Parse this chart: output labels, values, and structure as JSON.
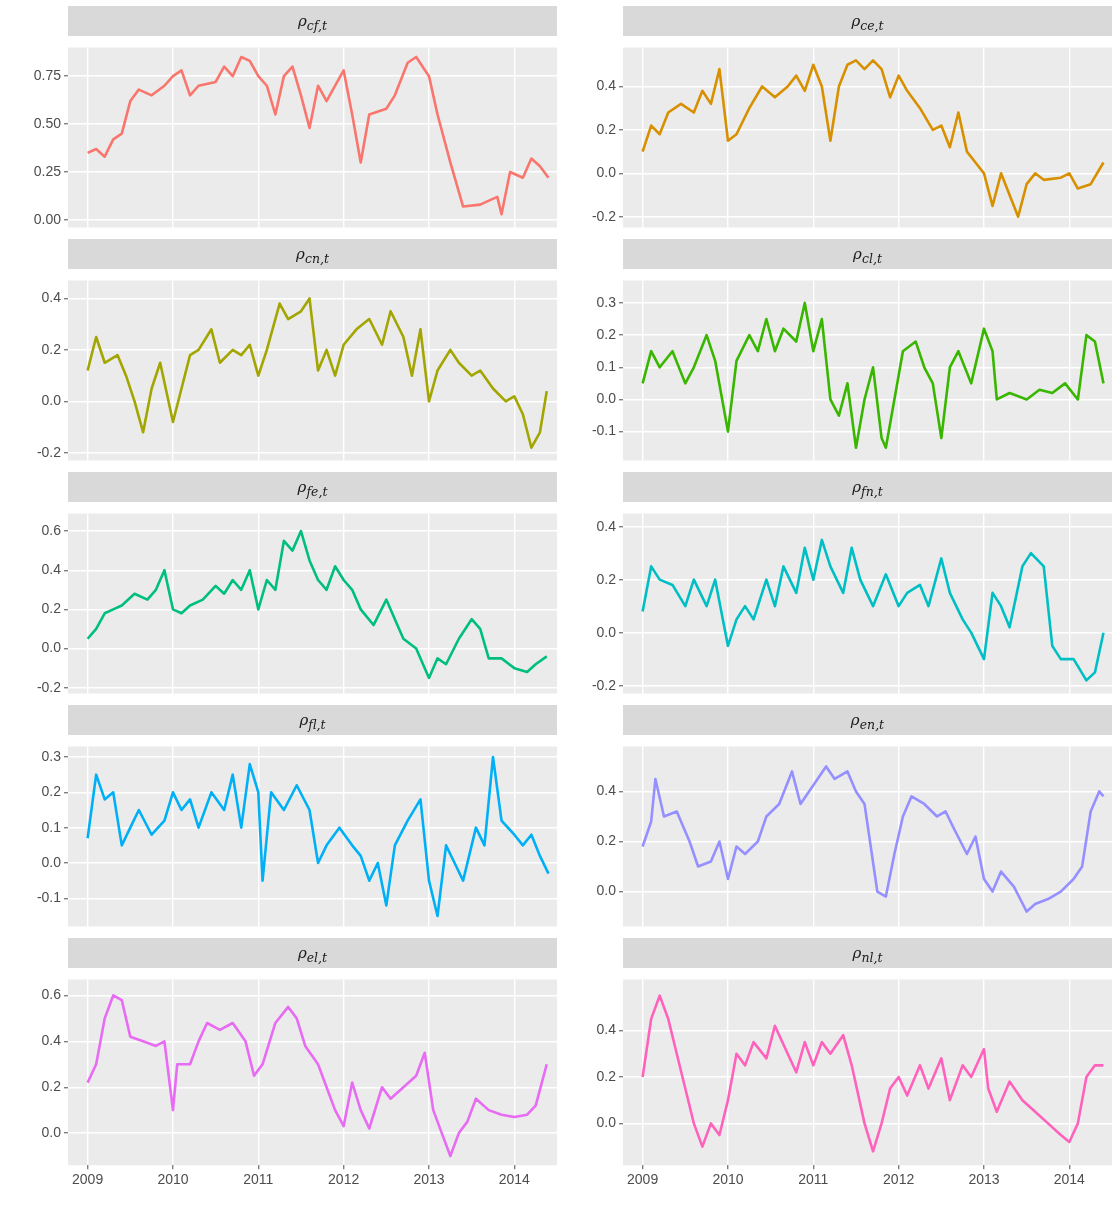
{
  "chart_data": [
    {
      "type": "line",
      "title": "ρ$_{cf,t}$",
      "color": "#f8766d",
      "xlim": [
        2008.77,
        2014.5
      ],
      "xticks": [
        2009,
        2010,
        2011,
        2012,
        2013,
        2014
      ],
      "ylim": [
        -0.04,
        0.9
      ],
      "yticks": [
        {
          "value": 0,
          "label": "0.00"
        },
        {
          "value": 0.25,
          "label": "0.25"
        },
        {
          "value": 0.5,
          "label": "0.50"
        },
        {
          "value": 0.75,
          "label": "0.75"
        }
      ],
      "grid": true,
      "tick_labels": "y",
      "x": [
        2009.0,
        2009.1,
        2009.2,
        2009.3,
        2009.4,
        2009.5,
        2009.6,
        2009.75,
        2009.9,
        2010.0,
        2010.1,
        2010.2,
        2010.3,
        2010.5,
        2010.6,
        2010.7,
        2010.8,
        2010.9,
        2011.0,
        2011.1,
        2011.2,
        2011.3,
        2011.4,
        2011.5,
        2011.6,
        2011.7,
        2011.8,
        2011.9,
        2012.0,
        2012.1,
        2012.2,
        2012.3,
        2012.5,
        2012.6,
        2012.75,
        2012.85,
        2013.0,
        2013.1,
        2013.25,
        2013.4,
        2013.6,
        2013.8,
        2013.85,
        2013.95,
        2014.1,
        2014.2,
        2014.3,
        2014.4
      ],
      "values": [
        0.35,
        0.37,
        0.33,
        0.42,
        0.45,
        0.62,
        0.68,
        0.65,
        0.7,
        0.75,
        0.78,
        0.65,
        0.7,
        0.72,
        0.8,
        0.75,
        0.85,
        0.83,
        0.75,
        0.7,
        0.55,
        0.75,
        0.8,
        0.65,
        0.48,
        0.7,
        0.62,
        0.7,
        0.78,
        0.55,
        0.3,
        0.55,
        0.58,
        0.65,
        0.82,
        0.85,
        0.75,
        0.55,
        0.3,
        0.07,
        0.08,
        0.12,
        0.03,
        0.25,
        0.22,
        0.32,
        0.28,
        0.22
      ]
    },
    {
      "type": "line",
      "title": "ρ$_{ce,t}$",
      "color": "#d89000",
      "xlim": [
        2008.77,
        2014.5
      ],
      "xticks": [
        2009,
        2010,
        2011,
        2012,
        2013,
        2014
      ],
      "ylim": [
        -0.25,
        0.58
      ],
      "yticks": [
        {
          "value": -0.2,
          "label": "-0.2"
        },
        {
          "value": 0,
          "label": "0.0"
        },
        {
          "value": 0.2,
          "label": "0.2"
        },
        {
          "value": 0.4,
          "label": "0.4"
        }
      ],
      "grid": true,
      "tick_labels": "y",
      "x": [
        2009.0,
        2009.1,
        2009.2,
        2009.3,
        2009.45,
        2009.6,
        2009.7,
        2009.8,
        2009.9,
        2010.0,
        2010.1,
        2010.25,
        2010.4,
        2010.55,
        2010.7,
        2010.8,
        2010.9,
        2011.0,
        2011.1,
        2011.2,
        2011.3,
        2011.4,
        2011.5,
        2011.6,
        2011.7,
        2011.8,
        2011.9,
        2012.0,
        2012.1,
        2012.25,
        2012.4,
        2012.5,
        2012.6,
        2012.7,
        2012.8,
        2012.9,
        2013.0,
        2013.1,
        2013.2,
        2013.3,
        2013.4,
        2013.5,
        2013.6,
        2013.7,
        2013.9,
        2014.0,
        2014.1,
        2014.25,
        2014.4
      ],
      "values": [
        0.1,
        0.22,
        0.18,
        0.28,
        0.32,
        0.28,
        0.38,
        0.32,
        0.48,
        0.15,
        0.18,
        0.3,
        0.4,
        0.35,
        0.4,
        0.45,
        0.38,
        0.5,
        0.4,
        0.15,
        0.4,
        0.5,
        0.52,
        0.48,
        0.52,
        0.48,
        0.35,
        0.45,
        0.38,
        0.3,
        0.2,
        0.22,
        0.12,
        0.28,
        0.1,
        0.05,
        0,
        -0.15,
        0,
        -0.1,
        -0.2,
        -0.05,
        0,
        -0.03,
        -0.02,
        0,
        -0.07,
        -0.05,
        0.05
      ]
    },
    {
      "type": "line",
      "title": "ρ$_{cn,t}$",
      "color": "#a3a500",
      "xlim": [
        2008.77,
        2014.5
      ],
      "xticks": [
        2009,
        2010,
        2011,
        2012,
        2013,
        2014
      ],
      "ylim": [
        -0.23,
        0.47
      ],
      "yticks": [
        {
          "value": -0.2,
          "label": "-0.2"
        },
        {
          "value": 0,
          "label": "0.0"
        },
        {
          "value": 0.2,
          "label": "0.2"
        },
        {
          "value": 0.4,
          "label": "0.4"
        }
      ],
      "grid": true,
      "tick_labels": "y",
      "x": [
        2009.0,
        2009.1,
        2009.2,
        2009.35,
        2009.45,
        2009.55,
        2009.65,
        2009.75,
        2009.85,
        2010.0,
        2010.1,
        2010.2,
        2010.3,
        2010.45,
        2010.55,
        2010.7,
        2010.8,
        2010.9,
        2011.0,
        2011.1,
        2011.25,
        2011.35,
        2011.5,
        2011.6,
        2011.7,
        2011.8,
        2011.9,
        2012.0,
        2012.15,
        2012.3,
        2012.45,
        2012.55,
        2012.7,
        2012.8,
        2012.9,
        2013.0,
        2013.1,
        2013.25,
        2013.35,
        2013.5,
        2013.6,
        2013.75,
        2013.9,
        2014.0,
        2014.1,
        2014.2,
        2014.3,
        2014.38
      ],
      "values": [
        0.12,
        0.25,
        0.15,
        0.18,
        0.1,
        0,
        -0.12,
        0.05,
        0.15,
        -0.08,
        0.05,
        0.18,
        0.2,
        0.28,
        0.15,
        0.2,
        0.18,
        0.22,
        0.1,
        0.2,
        0.38,
        0.32,
        0.35,
        0.4,
        0.12,
        0.2,
        0.1,
        0.22,
        0.28,
        0.32,
        0.22,
        0.35,
        0.25,
        0.1,
        0.28,
        0,
        0.12,
        0.2,
        0.15,
        0.1,
        0.12,
        0.05,
        0,
        0.02,
        -0.05,
        -0.18,
        -0.12,
        0.04
      ]
    },
    {
      "type": "line",
      "title": "ρ$_{cl,t}$",
      "color": "#39b600",
      "xlim": [
        2008.77,
        2014.5
      ],
      "xticks": [
        2009,
        2010,
        2011,
        2012,
        2013,
        2014
      ],
      "ylim": [
        -0.19,
        0.37
      ],
      "yticks": [
        {
          "value": -0.1,
          "label": "-0.1"
        },
        {
          "value": 0,
          "label": "0.0"
        },
        {
          "value": 0.1,
          "label": "0.1"
        },
        {
          "value": 0.2,
          "label": "0.2"
        },
        {
          "value": 0.3,
          "label": "0.3"
        }
      ],
      "grid": true,
      "tick_labels": "y",
      "x": [
        2009.0,
        2009.1,
        2009.2,
        2009.35,
        2009.5,
        2009.6,
        2009.75,
        2009.85,
        2010.0,
        2010.1,
        2010.25,
        2010.35,
        2010.45,
        2010.55,
        2010.65,
        2010.8,
        2010.9,
        2011.0,
        2011.1,
        2011.2,
        2011.3,
        2011.4,
        2011.5,
        2011.6,
        2011.7,
        2011.8,
        2011.85,
        2011.95,
        2012.05,
        2012.2,
        2012.3,
        2012.4,
        2012.5,
        2012.6,
        2012.7,
        2012.85,
        2013.0,
        2013.1,
        2013.15,
        2013.3,
        2013.5,
        2013.65,
        2013.8,
        2013.95,
        2014.1,
        2014.2,
        2014.3,
        2014.4
      ],
      "values": [
        0.05,
        0.15,
        0.1,
        0.15,
        0.05,
        0.1,
        0.2,
        0.12,
        -0.1,
        0.12,
        0.2,
        0.15,
        0.25,
        0.15,
        0.22,
        0.18,
        0.3,
        0.15,
        0.25,
        0,
        -0.05,
        0.05,
        -0.15,
        0,
        0.1,
        -0.12,
        -0.15,
        0,
        0.15,
        0.18,
        0.1,
        0.05,
        -0.12,
        0.1,
        0.15,
        0.05,
        0.22,
        0.15,
        0,
        0.02,
        0,
        0.03,
        0.02,
        0.05,
        0,
        0.2,
        0.18,
        0.05
      ]
    },
    {
      "type": "line",
      "title": "ρ$_{fe,t}$",
      "color": "#00bf7d",
      "xlim": [
        2008.77,
        2014.5
      ],
      "xticks": [
        2009,
        2010,
        2011,
        2012,
        2013,
        2014
      ],
      "ylim": [
        -0.23,
        0.69
      ],
      "yticks": [
        {
          "value": -0.2,
          "label": "-0.2"
        },
        {
          "value": 0,
          "label": "0.0"
        },
        {
          "value": 0.2,
          "label": "0.2"
        },
        {
          "value": 0.4,
          "label": "0.4"
        },
        {
          "value": 0.6,
          "label": "0.6"
        }
      ],
      "grid": true,
      "tick_labels": "y",
      "x": [
        2009.0,
        2009.1,
        2009.2,
        2009.3,
        2009.4,
        2009.55,
        2009.7,
        2009.8,
        2009.9,
        2010.0,
        2010.1,
        2010.2,
        2010.35,
        2010.5,
        2010.6,
        2010.7,
        2010.8,
        2010.9,
        2011.0,
        2011.1,
        2011.2,
        2011.3,
        2011.4,
        2011.5,
        2011.6,
        2011.7,
        2011.8,
        2011.9,
        2012.0,
        2012.1,
        2012.2,
        2012.35,
        2012.5,
        2012.6,
        2012.7,
        2012.85,
        2013.0,
        2013.1,
        2013.2,
        2013.35,
        2013.5,
        2013.6,
        2013.7,
        2013.85,
        2014.0,
        2014.15,
        2014.25,
        2014.38
      ],
      "values": [
        0.05,
        0.1,
        0.18,
        0.2,
        0.22,
        0.28,
        0.25,
        0.3,
        0.4,
        0.2,
        0.18,
        0.22,
        0.25,
        0.32,
        0.28,
        0.35,
        0.3,
        0.4,
        0.2,
        0.35,
        0.3,
        0.55,
        0.5,
        0.6,
        0.45,
        0.35,
        0.3,
        0.42,
        0.35,
        0.3,
        0.2,
        0.12,
        0.25,
        0.15,
        0.05,
        0,
        -0.15,
        -0.05,
        -0.08,
        0.05,
        0.15,
        0.1,
        -0.05,
        -0.05,
        -0.1,
        -0.12,
        -0.08,
        -0.04
      ]
    },
    {
      "type": "line",
      "title": "ρ$_{fn,t}$",
      "color": "#00bfc4",
      "xlim": [
        2008.77,
        2014.5
      ],
      "xticks": [
        2009,
        2010,
        2011,
        2012,
        2013,
        2014
      ],
      "ylim": [
        -0.23,
        0.45
      ],
      "yticks": [
        {
          "value": -0.2,
          "label": "-0.2"
        },
        {
          "value": 0,
          "label": "0.0"
        },
        {
          "value": 0.2,
          "label": "0.2"
        },
        {
          "value": 0.4,
          "label": "0.4"
        }
      ],
      "grid": true,
      "tick_labels": "y",
      "x": [
        2009.0,
        2009.1,
        2009.2,
        2009.35,
        2009.5,
        2009.6,
        2009.75,
        2009.85,
        2010.0,
        2010.1,
        2010.2,
        2010.3,
        2010.45,
        2010.55,
        2010.65,
        2010.8,
        2010.9,
        2011.0,
        2011.1,
        2011.2,
        2011.35,
        2011.45,
        2011.55,
        2011.7,
        2011.85,
        2012.0,
        2012.1,
        2012.25,
        2012.35,
        2012.5,
        2012.6,
        2012.75,
        2012.85,
        2013.0,
        2013.1,
        2013.2,
        2013.3,
        2013.45,
        2013.55,
        2013.7,
        2013.8,
        2013.9,
        2014.05,
        2014.2,
        2014.3,
        2014.4
      ],
      "values": [
        0.08,
        0.25,
        0.2,
        0.18,
        0.1,
        0.2,
        0.1,
        0.2,
        -0.05,
        0.05,
        0.1,
        0.05,
        0.2,
        0.1,
        0.25,
        0.15,
        0.32,
        0.2,
        0.35,
        0.25,
        0.15,
        0.32,
        0.2,
        0.1,
        0.22,
        0.1,
        0.15,
        0.18,
        0.1,
        0.28,
        0.15,
        0.05,
        0,
        -0.1,
        0.15,
        0.1,
        0.02,
        0.25,
        0.3,
        0.25,
        -0.05,
        -0.1,
        -0.1,
        -0.18,
        -0.15,
        0
      ]
    },
    {
      "type": "line",
      "title": "ρ$_{fl,t}$",
      "color": "#00b0f6",
      "xlim": [
        2008.77,
        2014.5
      ],
      "xticks": [
        2009,
        2010,
        2011,
        2012,
        2013,
        2014
      ],
      "ylim": [
        -0.18,
        0.33
      ],
      "yticks": [
        {
          "value": -0.1,
          "label": "-0.1"
        },
        {
          "value": 0,
          "label": "0.0"
        },
        {
          "value": 0.1,
          "label": "0.1"
        },
        {
          "value": 0.2,
          "label": "0.2"
        },
        {
          "value": 0.3,
          "label": "0.3"
        }
      ],
      "grid": true,
      "tick_labels": "y",
      "x": [
        2009.0,
        2009.1,
        2009.2,
        2009.3,
        2009.4,
        2009.5,
        2009.6,
        2009.75,
        2009.9,
        2010.0,
        2010.1,
        2010.2,
        2010.3,
        2010.45,
        2010.6,
        2010.7,
        2010.8,
        2010.9,
        2011.0,
        2011.05,
        2011.15,
        2011.3,
        2011.45,
        2011.6,
        2011.7,
        2011.8,
        2011.95,
        2012.1,
        2012.2,
        2012.3,
        2012.4,
        2012.5,
        2012.6,
        2012.75,
        2012.9,
        2013.0,
        2013.1,
        2013.2,
        2013.3,
        2013.4,
        2013.55,
        2013.65,
        2013.75,
        2013.85,
        2014.0,
        2014.1,
        2014.2,
        2014.3,
        2014.4
      ],
      "values": [
        0.07,
        0.25,
        0.18,
        0.2,
        0.05,
        0.1,
        0.15,
        0.08,
        0.12,
        0.2,
        0.15,
        0.18,
        0.1,
        0.2,
        0.15,
        0.25,
        0.1,
        0.28,
        0.2,
        -0.05,
        0.2,
        0.15,
        0.22,
        0.15,
        0,
        0.05,
        0.1,
        0.05,
        0.02,
        -0.05,
        0,
        -0.12,
        0.05,
        0.12,
        0.18,
        -0.05,
        -0.15,
        0.05,
        0,
        -0.05,
        0.1,
        0.05,
        0.3,
        0.12,
        0.08,
        0.05,
        0.08,
        0.02,
        -0.03
      ]
    },
    {
      "type": "line",
      "title": "ρ$_{en,t}$",
      "color": "#9590ff",
      "xlim": [
        2008.77,
        2014.5
      ],
      "xticks": [
        2009,
        2010,
        2011,
        2012,
        2013,
        2014
      ],
      "ylim": [
        -0.14,
        0.58
      ],
      "yticks": [
        {
          "value": 0,
          "label": "0.0"
        },
        {
          "value": 0.2,
          "label": "0.2"
        },
        {
          "value": 0.4,
          "label": "0.4"
        }
      ],
      "grid": true,
      "tick_labels": "y",
      "x": [
        2009.0,
        2009.1,
        2009.15,
        2009.25,
        2009.4,
        2009.55,
        2009.65,
        2009.8,
        2009.9,
        2010.0,
        2010.1,
        2010.2,
        2010.35,
        2010.45,
        2010.6,
        2010.75,
        2010.85,
        2010.95,
        2011.05,
        2011.15,
        2011.25,
        2011.4,
        2011.5,
        2011.6,
        2011.75,
        2011.85,
        2011.95,
        2012.05,
        2012.15,
        2012.3,
        2012.45,
        2012.55,
        2012.65,
        2012.8,
        2012.9,
        2013.0,
        2013.1,
        2013.2,
        2013.35,
        2013.5,
        2013.6,
        2013.75,
        2013.9,
        2014.05,
        2014.15,
        2014.25,
        2014.35,
        2014.4
      ],
      "values": [
        0.18,
        0.28,
        0.45,
        0.3,
        0.32,
        0.2,
        0.1,
        0.12,
        0.2,
        0.05,
        0.18,
        0.15,
        0.2,
        0.3,
        0.35,
        0.48,
        0.35,
        0.4,
        0.45,
        0.5,
        0.45,
        0.48,
        0.4,
        0.35,
        0,
        -0.02,
        0.15,
        0.3,
        0.38,
        0.35,
        0.3,
        0.32,
        0.25,
        0.15,
        0.22,
        0.05,
        0,
        0.08,
        0.02,
        -0.08,
        -0.05,
        -0.03,
        0,
        0.05,
        0.1,
        0.32,
        0.4,
        0.38
      ]
    },
    {
      "type": "line",
      "title": "ρ$_{el,t}$",
      "color": "#e76bf3",
      "xlim": [
        2008.77,
        2014.5
      ],
      "xticks": [
        2009,
        2010,
        2011,
        2012,
        2013,
        2014
      ],
      "ylim": [
        -0.14,
        0.67
      ],
      "yticks": [
        {
          "value": 0,
          "label": "0.0"
        },
        {
          "value": 0.2,
          "label": "0.2"
        },
        {
          "value": 0.4,
          "label": "0.4"
        },
        {
          "value": 0.6,
          "label": "0.6"
        }
      ],
      "grid": true,
      "x": [
        2009.0,
        2009.1,
        2009.2,
        2009.3,
        2009.4,
        2009.5,
        2009.65,
        2009.8,
        2009.9,
        2010.0,
        2010.05,
        2010.2,
        2010.3,
        2010.4,
        2010.55,
        2010.7,
        2010.85,
        2010.95,
        2011.05,
        2011.2,
        2011.35,
        2011.45,
        2011.55,
        2011.7,
        2011.8,
        2011.9,
        2012.0,
        2012.1,
        2012.2,
        2012.3,
        2012.45,
        2012.55,
        2012.7,
        2012.85,
        2012.95,
        2013.05,
        2013.15,
        2013.25,
        2013.35,
        2013.45,
        2013.55,
        2013.7,
        2013.85,
        2014.0,
        2014.15,
        2014.25,
        2014.38
      ],
      "values": [
        0.22,
        0.3,
        0.5,
        0.6,
        0.58,
        0.42,
        0.4,
        0.38,
        0.4,
        0.1,
        0.3,
        0.3,
        0.4,
        0.48,
        0.45,
        0.48,
        0.4,
        0.25,
        0.3,
        0.48,
        0.55,
        0.5,
        0.38,
        0.3,
        0.2,
        0.1,
        0.03,
        0.22,
        0.1,
        0.02,
        0.2,
        0.15,
        0.2,
        0.25,
        0.35,
        0.1,
        0,
        -0.1,
        0,
        0.05,
        0.15,
        0.1,
        0.08,
        0.07,
        0.08,
        0.12,
        0.3
      ]
    },
    {
      "type": "line",
      "title": "ρ$_{nl,t}$",
      "color": "#ff62bc",
      "xlim": [
        2008.77,
        2014.5
      ],
      "xticks": [
        2009,
        2010,
        2011,
        2012,
        2013,
        2014
      ],
      "ylim": [
        -0.18,
        0.62
      ],
      "yticks": [
        {
          "value": 0,
          "label": "0.0"
        },
        {
          "value": 0.2,
          "label": "0.2"
        },
        {
          "value": 0.4,
          "label": "0.4"
        }
      ],
      "grid": true,
      "x": [
        2009.0,
        2009.1,
        2009.2,
        2009.3,
        2009.4,
        2009.5,
        2009.6,
        2009.7,
        2009.8,
        2009.9,
        2010.0,
        2010.1,
        2010.2,
        2010.3,
        2010.45,
        2010.55,
        2010.7,
        2010.8,
        2010.9,
        2011.0,
        2011.1,
        2011.2,
        2011.35,
        2011.45,
        2011.6,
        2011.7,
        2011.8,
        2011.9,
        2012.0,
        2012.1,
        2012.25,
        2012.35,
        2012.5,
        2012.6,
        2012.75,
        2012.85,
        2013.0,
        2013.05,
        2013.15,
        2013.3,
        2013.45,
        2013.6,
        2013.75,
        2013.9,
        2014.0,
        2014.1,
        2014.2,
        2014.3,
        2014.4
      ],
      "values": [
        0.2,
        0.45,
        0.55,
        0.45,
        0.3,
        0.15,
        0,
        -0.1,
        0,
        -0.05,
        0.1,
        0.3,
        0.25,
        0.35,
        0.28,
        0.42,
        0.3,
        0.22,
        0.35,
        0.25,
        0.35,
        0.3,
        0.38,
        0.25,
        0,
        -0.12,
        0,
        0.15,
        0.2,
        0.12,
        0.25,
        0.15,
        0.28,
        0.1,
        0.25,
        0.2,
        0.32,
        0.15,
        0.05,
        0.18,
        0.1,
        0.05,
        0,
        -0.05,
        -0.08,
        0,
        0.2,
        0.25,
        0.25
      ]
    }
  ]
}
